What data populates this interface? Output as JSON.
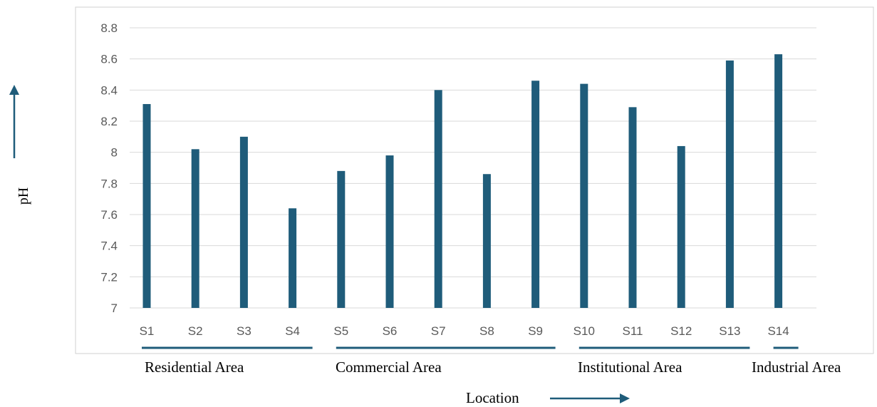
{
  "chart_data": {
    "type": "bar",
    "categories": [
      "S1",
      "S2",
      "S3",
      "S4",
      "S5",
      "S6",
      "S7",
      "S8",
      "S9",
      "S10",
      "S11",
      "S12",
      "S13",
      "S14"
    ],
    "values": [
      8.31,
      8.02,
      8.1,
      7.64,
      7.88,
      7.98,
      8.4,
      7.86,
      8.46,
      8.44,
      8.29,
      8.04,
      8.59,
      8.63
    ],
    "ylabel": "pH",
    "xlabel": "Location",
    "ylim": [
      7,
      8.8
    ],
    "yticks": [
      "7",
      "7.2",
      "7.4",
      "7.6",
      "7.8",
      "8",
      "8.2",
      "8.4",
      "8.6",
      "8.8"
    ],
    "groups": [
      {
        "label": "Residential Area",
        "from": 0,
        "to": 3
      },
      {
        "label": "Commercial Area",
        "from": 4,
        "to": 8
      },
      {
        "label": "Institutional Area",
        "from": 9,
        "to": 12
      },
      {
        "label": "Industrial Area",
        "from": 13,
        "to": 13
      }
    ],
    "grid": true,
    "bar_color": "#1f5c7a",
    "grid_color": "#d9d9d9",
    "frame_color": "#d0d0d0"
  }
}
